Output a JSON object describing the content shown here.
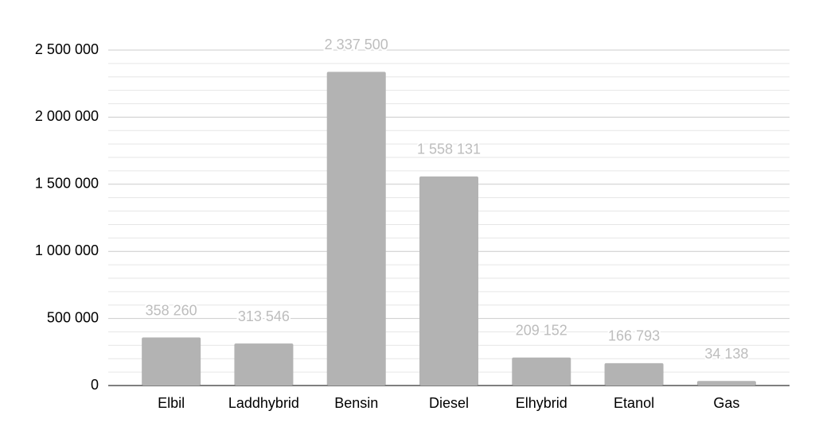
{
  "chart_data": {
    "type": "bar",
    "categories": [
      "Elbil",
      "Laddhybrid",
      "Bensin",
      "Diesel",
      "Elhybrid",
      "Etanol",
      "Gas"
    ],
    "values": [
      358260,
      313546,
      2337500,
      1558131,
      209152,
      166793,
      34138
    ],
    "value_labels": [
      "358 260",
      "313 546",
      "2 337 500",
      "1 558 131",
      "209 152",
      "166 793",
      "34 138"
    ],
    "color": "#b3b3b3",
    "ylim": [
      0,
      2500000
    ],
    "yticks": [
      0,
      {
        "value": 500000,
        "label": "500 000"
      },
      {
        "value": 1000000,
        "label": "1 000 000"
      },
      {
        "value": 1500000,
        "label": "1 500 000"
      },
      {
        "value": 2000000,
        "label": "2 000 000"
      },
      {
        "value": 2500000,
        "label": "2 500 000"
      }
    ],
    "minor_yticks": [
      100000,
      200000,
      300000,
      400000,
      600000,
      700000,
      800000,
      900000,
      1100000,
      1200000,
      1300000,
      1400000,
      1600000,
      1700000,
      1800000,
      1900000,
      2100000,
      2200000,
      2300000,
      2400000
    ],
    "grid": true
  }
}
